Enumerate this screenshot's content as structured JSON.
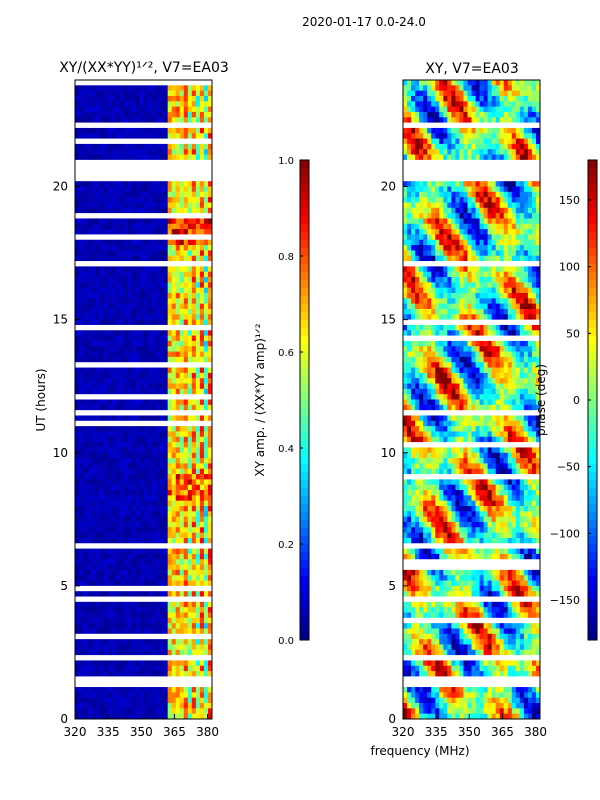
{
  "suptitle": "2020-01-17 0.0-24.0",
  "xlabel_common": "frequency (MHz)",
  "colors": {
    "jet": [
      "#00007f",
      "#0000ff",
      "#007fff",
      "#00ffff",
      "#7fff7f",
      "#ffff00",
      "#ff7f00",
      "#ff0000",
      "#7f0000"
    ],
    "gap": "#ffffff"
  },
  "chart_data": [
    {
      "type": "heatmap",
      "title": "XY/(XX*YY)¹ᐟ², V7=EA03",
      "xlabel": "",
      "ylabel": "UT (hours)",
      "xlim": [
        320,
        382
      ],
      "ylim": [
        0,
        24
      ],
      "xticks": [
        "320",
        "335",
        "350",
        "365",
        "380"
      ],
      "xtick_values": [
        320,
        335,
        350,
        365,
        380
      ],
      "yticks": [
        "0",
        "5",
        "10",
        "15",
        "20"
      ],
      "ytick_values": [
        0,
        5,
        10,
        15,
        20
      ],
      "colorbar": {
        "label": "XY amp. / (XX*YY amp)¹ᐟ²",
        "range": [
          0.0,
          1.0
        ],
        "ticks": [
          "0.0",
          "0.2",
          "0.4",
          "0.6",
          "0.8",
          "1.0"
        ],
        "tick_values": [
          0.0,
          0.2,
          0.4,
          0.6,
          0.8,
          1.0
        ]
      },
      "gaps_hours": [
        [
          20.2,
          21.0
        ],
        [
          1.3,
          1.5
        ],
        [
          4.4,
          4.6
        ],
        [
          6.4,
          6.5
        ],
        [
          11.4,
          11.6
        ],
        [
          17.0,
          17.1
        ],
        [
          22.3,
          22.4
        ]
      ],
      "bright_band_mhz": [
        362,
        382
      ]
    },
    {
      "type": "heatmap",
      "title": "XY, V7=EA03",
      "xlabel": "frequency (MHz)",
      "ylabel": "",
      "xlim": [
        320,
        382
      ],
      "ylim": [
        0,
        24
      ],
      "xticks": [
        "320",
        "335",
        "350",
        "365",
        "380"
      ],
      "xtick_values": [
        320,
        335,
        350,
        365,
        380
      ],
      "yticks": [
        "0",
        "5",
        "10",
        "15",
        "20"
      ],
      "ytick_values": [
        0,
        5,
        10,
        15,
        20
      ],
      "colorbar": {
        "label": "phase (deg)",
        "range": [
          -180,
          180
        ],
        "ticks": [
          "−150",
          "−100",
          "−50",
          "0",
          "50",
          "100",
          "150"
        ],
        "tick_values": [
          -150,
          -100,
          -50,
          0,
          50,
          100,
          150
        ]
      },
      "gaps_hours": [
        [
          20.2,
          21.0
        ],
        [
          1.3,
          1.5
        ],
        [
          4.4,
          4.6
        ],
        [
          6.4,
          6.5
        ],
        [
          11.4,
          11.6
        ],
        [
          17.0,
          17.1
        ],
        [
          22.3,
          22.4
        ]
      ]
    }
  ]
}
